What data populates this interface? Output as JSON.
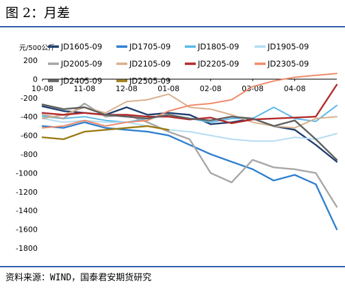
{
  "figure_title": "图 2：月差",
  "source_note": "资料来源：WIND，国泰君安期货研究",
  "chart_data": {
    "type": "line",
    "ylabel": "元/500公斤",
    "ylim": [
      -1800,
      200
    ],
    "yticks": [
      200,
      0,
      -200,
      -400,
      -600,
      -800,
      -1000,
      -1200,
      -1400,
      -1600,
      -1800
    ],
    "xticks": [
      "10-08",
      "11-08",
      "12-08",
      "01-08",
      "02-08",
      "03-08",
      "04-08"
    ],
    "x": [
      "10-08",
      "10-23",
      "11-08",
      "11-23",
      "12-08",
      "12-23",
      "01-08",
      "01-23",
      "02-08",
      "02-23",
      "03-08",
      "03-23",
      "04-08",
      "04-23",
      "05-03"
    ],
    "legend_position": "top",
    "grid": false,
    "series": [
      {
        "name": "JD1605-09",
        "color": "#1f3e6e",
        "width": 2.4,
        "values": [
          -290,
          -340,
          -360,
          -380,
          -300,
          -380,
          -360,
          -380,
          -480,
          -460,
          -420,
          -500,
          -540,
          -700,
          -880
        ]
      },
      {
        "name": "JD1705-09",
        "color": "#2f7fcf",
        "width": 2.4,
        "values": [
          -500,
          -520,
          -460,
          -520,
          -540,
          -560,
          -600,
          -700,
          -800,
          -880,
          -960,
          -1080,
          -1020,
          -1120,
          -1600
        ]
      },
      {
        "name": "JD1805-09",
        "color": "#5bb8ea",
        "width": 2.0,
        "values": [
          -400,
          -420,
          -400,
          -440,
          -460,
          -420,
          -380,
          -420,
          -460,
          -420,
          -420,
          -300,
          -420,
          -450,
          -280
        ]
      },
      {
        "name": "JD1905-09",
        "color": "#b4dcf2",
        "width": 2.0,
        "values": [
          -420,
          -460,
          -440,
          -460,
          -460,
          -500,
          -540,
          -560,
          -600,
          -640,
          -660,
          -660,
          -620,
          -640,
          -580
        ]
      },
      {
        "name": "JD2005-09",
        "color": "#a6a6a6",
        "width": 2.4,
        "values": [
          -380,
          -420,
          -260,
          -400,
          -380,
          -460,
          -560,
          -640,
          -1000,
          -1100,
          -860,
          -940,
          -960,
          -1000,
          -1360
        ]
      },
      {
        "name": "JD2105-09",
        "color": "#d8b08c",
        "width": 2.0,
        "values": [
          -420,
          -380,
          -300,
          -360,
          -240,
          -220,
          -160,
          -300,
          -320,
          -380,
          -460,
          -500,
          -520,
          -420,
          -400
        ]
      },
      {
        "name": "JD2205-09",
        "color": "#b22a2a",
        "width": 2.4,
        "values": [
          -360,
          -380,
          -360,
          -380,
          -380,
          -400,
          -400,
          -430,
          -410,
          -470,
          -430,
          -420,
          -410,
          -400,
          -60
        ]
      },
      {
        "name": "JD2305-09",
        "color": "#f08a6a",
        "width": 2.0,
        "values": [
          -520,
          -500,
          -440,
          -500,
          -460,
          -440,
          -340,
          -280,
          -260,
          -220,
          -80,
          -20,
          20,
          40,
          60
        ]
      },
      {
        "name": "JD2405-09",
        "color": "#5f5f5f",
        "width": 2.4,
        "values": [
          -270,
          -320,
          -300,
          -380,
          -400,
          -420,
          -380,
          -420,
          -440,
          -400,
          -420,
          -500,
          -440,
          -640,
          -860
        ]
      },
      {
        "name": "JD2505-09",
        "color": "#9c7a14",
        "width": 2.4,
        "values": [
          -620,
          -640,
          -560,
          -540,
          -520,
          -500,
          -540,
          null,
          null,
          null,
          null,
          null,
          null,
          null,
          null
        ]
      }
    ]
  }
}
